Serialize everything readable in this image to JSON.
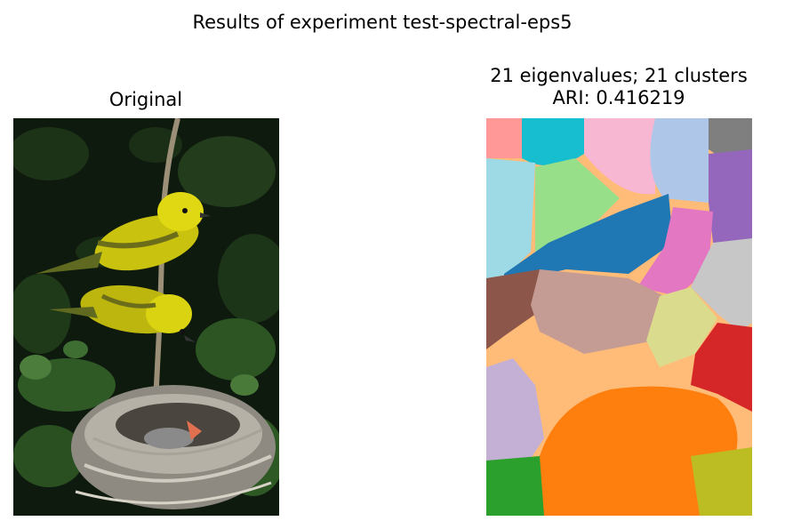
{
  "figure": {
    "suptitle": "Results of experiment test-spectral-eps5"
  },
  "panels": [
    {
      "title": "Original"
    },
    {
      "title_line1": "21 eigenvalues; 21 clusters",
      "title_line2": "ARI: 0.416219"
    }
  ],
  "colors": {
    "background": "#ffffff",
    "cluster_palette": [
      "#ff9896",
      "#17becf",
      "#f7b6d2",
      "#aec7e8",
      "#7f7f7f",
      "#9edae5",
      "#98df8a",
      "#1f77b4",
      "#9467bd",
      "#e377c2",
      "#8c564b",
      "#c49c94",
      "#c7c7c7",
      "#dbdb8d",
      "#d62728",
      "#ffbb78",
      "#c5b0d5",
      "#ff7f0e",
      "#2ca02c",
      "#bcbd22"
    ]
  }
}
